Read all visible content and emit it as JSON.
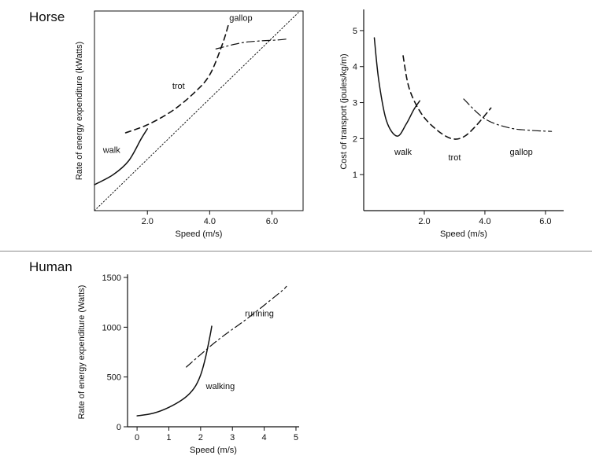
{
  "labels": {
    "horse": "Horse",
    "human": "Human"
  },
  "chart_data": [
    {
      "id": "horse-energy",
      "type": "line",
      "title": "",
      "xlabel": "Speed (m/s)",
      "ylabel": "Rate of energy expenditure (kWatts)",
      "xlim": [
        0.3,
        7.0
      ],
      "ylim": [
        0,
        1
      ],
      "y_ticks_shown": false,
      "x_ticks": [
        2.0,
        4.0,
        6.0
      ],
      "x_tick_labels": [
        "2.0",
        "4.0",
        "6.0"
      ],
      "grid": false,
      "series": [
        {
          "name": "walk",
          "style": "solid",
          "x": [
            0.3,
            0.9,
            1.4,
            1.8,
            2.0
          ],
          "y": [
            0.13,
            0.18,
            0.25,
            0.36,
            0.41
          ]
        },
        {
          "name": "trot",
          "style": "dashed",
          "x": [
            1.3,
            2.0,
            2.8,
            3.5,
            4.0,
            4.4,
            4.6
          ],
          "y": [
            0.39,
            0.43,
            0.5,
            0.59,
            0.68,
            0.83,
            0.93
          ]
        },
        {
          "name": "gallop",
          "style": "dash-dot",
          "x": [
            4.2,
            5.0,
            5.6,
            6.2,
            6.5
          ],
          "y": [
            0.81,
            0.84,
            0.85,
            0.855,
            0.86
          ]
        },
        {
          "name": "",
          "style": "dotted",
          "x": [
            0.3,
            6.9
          ],
          "y": [
            0.0,
            1.0
          ]
        }
      ],
      "annotations": [
        {
          "text": "walk",
          "x": 0.85,
          "y": 0.29
        },
        {
          "text": "trot",
          "x": 3.0,
          "y": 0.61
        },
        {
          "text": "gallop",
          "x": 5.0,
          "y": 0.95
        }
      ]
    },
    {
      "id": "horse-cost",
      "type": "line",
      "title": "",
      "xlabel": "Speed (m/s)",
      "ylabel": "Cost of transport (joules/kg/m)",
      "xlim": [
        0,
        6.6
      ],
      "ylim": [
        0,
        5.5
      ],
      "x_ticks": [
        2.0,
        4.0,
        6.0
      ],
      "x_tick_labels": [
        "2.0",
        "4.0",
        "6.0"
      ],
      "y_ticks": [
        1,
        2,
        3,
        4,
        5
      ],
      "y_tick_labels": [
        "1",
        "2",
        "3",
        "4",
        "5"
      ],
      "grid": false,
      "series": [
        {
          "name": "walk",
          "style": "solid",
          "x": [
            0.35,
            0.5,
            0.75,
            1.1,
            1.4,
            1.65,
            1.85
          ],
          "y": [
            4.8,
            3.6,
            2.5,
            2.07,
            2.4,
            2.8,
            3.05
          ]
        },
        {
          "name": "trot",
          "style": "dashed",
          "x": [
            1.3,
            1.5,
            1.9,
            2.4,
            2.9,
            3.3,
            3.7,
            4.2
          ],
          "y": [
            4.3,
            3.4,
            2.7,
            2.25,
            2.0,
            2.05,
            2.35,
            2.85
          ]
        },
        {
          "name": "gallop",
          "style": "dash-dot",
          "x": [
            3.3,
            4.0,
            4.8,
            5.5,
            6.2
          ],
          "y": [
            3.1,
            2.55,
            2.3,
            2.23,
            2.2
          ]
        }
      ],
      "annotations": [
        {
          "text": "walk",
          "x": 1.3,
          "y": 1.55
        },
        {
          "text": "trot",
          "x": 3.0,
          "y": 1.4
        },
        {
          "text": "gallop",
          "x": 5.2,
          "y": 1.55
        }
      ]
    },
    {
      "id": "human-energy",
      "type": "line",
      "title": "",
      "xlabel": "Speed (m/s)",
      "ylabel": "Rate of energy expenditure (Watts)",
      "xlim": [
        -0.3,
        5.1
      ],
      "ylim": [
        0,
        1500
      ],
      "x_ticks": [
        0,
        1,
        2,
        3,
        4,
        5
      ],
      "x_tick_labels": [
        "0",
        "1",
        "2",
        "3",
        "4",
        "5"
      ],
      "y_ticks": [
        0,
        500,
        1000,
        1500
      ],
      "y_tick_labels": [
        "0",
        "500",
        "1000",
        "1500"
      ],
      "grid": false,
      "series": [
        {
          "name": "walking",
          "style": "solid",
          "x": [
            0.0,
            0.5,
            1.0,
            1.5,
            1.8,
            2.0,
            2.15,
            2.3,
            2.35
          ],
          "y": [
            110,
            135,
            195,
            290,
            390,
            520,
            690,
            920,
            1010
          ]
        },
        {
          "name": "running",
          "style": "dash-dot",
          "x": [
            1.55,
            2.5,
            3.5,
            4.5,
            4.7
          ],
          "y": [
            600,
            860,
            1095,
            1350,
            1410
          ]
        }
      ],
      "annotations": [
        {
          "text": "walking",
          "x": 2.62,
          "y": 380
        },
        {
          "text": "running",
          "x": 3.85,
          "y": 1110
        }
      ]
    }
  ]
}
